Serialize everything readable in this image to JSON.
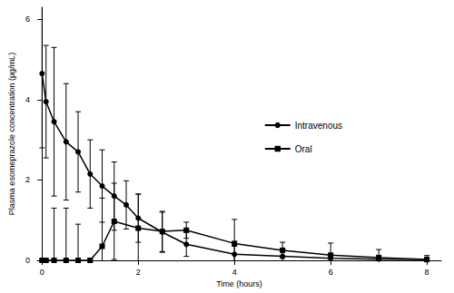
{
  "chart_data": {
    "type": "line",
    "x_label": "Time (hours)",
    "y_label": "Plasma esomeprazole concentration (µg/mL)",
    "xlim": [
      -0.1,
      8.3
    ],
    "xticks": [
      0,
      2,
      4,
      6,
      8
    ],
    "ylim": [
      0,
      6.3
    ],
    "yticks": [
      0,
      2,
      4,
      6
    ],
    "grid": false,
    "legend": "right",
    "series": [
      {
        "name": "Intravenous",
        "color": "#000000",
        "marker": "circle",
        "line_style": "solid",
        "x": [
          0,
          0.083,
          0.25,
          0.5,
          0.75,
          1,
          1.25,
          1.5,
          1.75,
          2,
          2.5,
          3,
          4,
          5,
          6,
          7,
          8
        ],
        "values": [
          4.65,
          3.95,
          3.45,
          2.95,
          2.7,
          2.15,
          1.85,
          1.6,
          1.38,
          1.05,
          0.7,
          0.4,
          0.15,
          0.1,
          0.05,
          0.03,
          0.02
        ],
        "error": [
          1.85,
          1.4,
          1.85,
          1.45,
          1.0,
          0.85,
          0.9,
          0.85,
          0.6,
          0.6,
          0.5,
          0.3,
          0.2,
          0.15,
          0.1,
          0.05,
          0.05
        ]
      },
      {
        "name": "Oral",
        "color": "#000000",
        "marker": "square",
        "line_style": "solid",
        "x": [
          0,
          0.083,
          0.25,
          0.5,
          0.75,
          1,
          1.25,
          1.5,
          2,
          2.5,
          3,
          4,
          5,
          6,
          7,
          8
        ],
        "values": [
          0,
          0,
          0,
          0,
          0,
          0,
          0.35,
          0.97,
          0.8,
          0.72,
          0.75,
          0.42,
          0.25,
          0.13,
          0.07,
          0.02
        ],
        "error": [
          0,
          0,
          1.3,
          1.3,
          0.9,
          0.05,
          1.2,
          0.95,
          0.85,
          0.5,
          0.2,
          0.6,
          0.2,
          0.3,
          0.2,
          0.1
        ]
      }
    ]
  }
}
